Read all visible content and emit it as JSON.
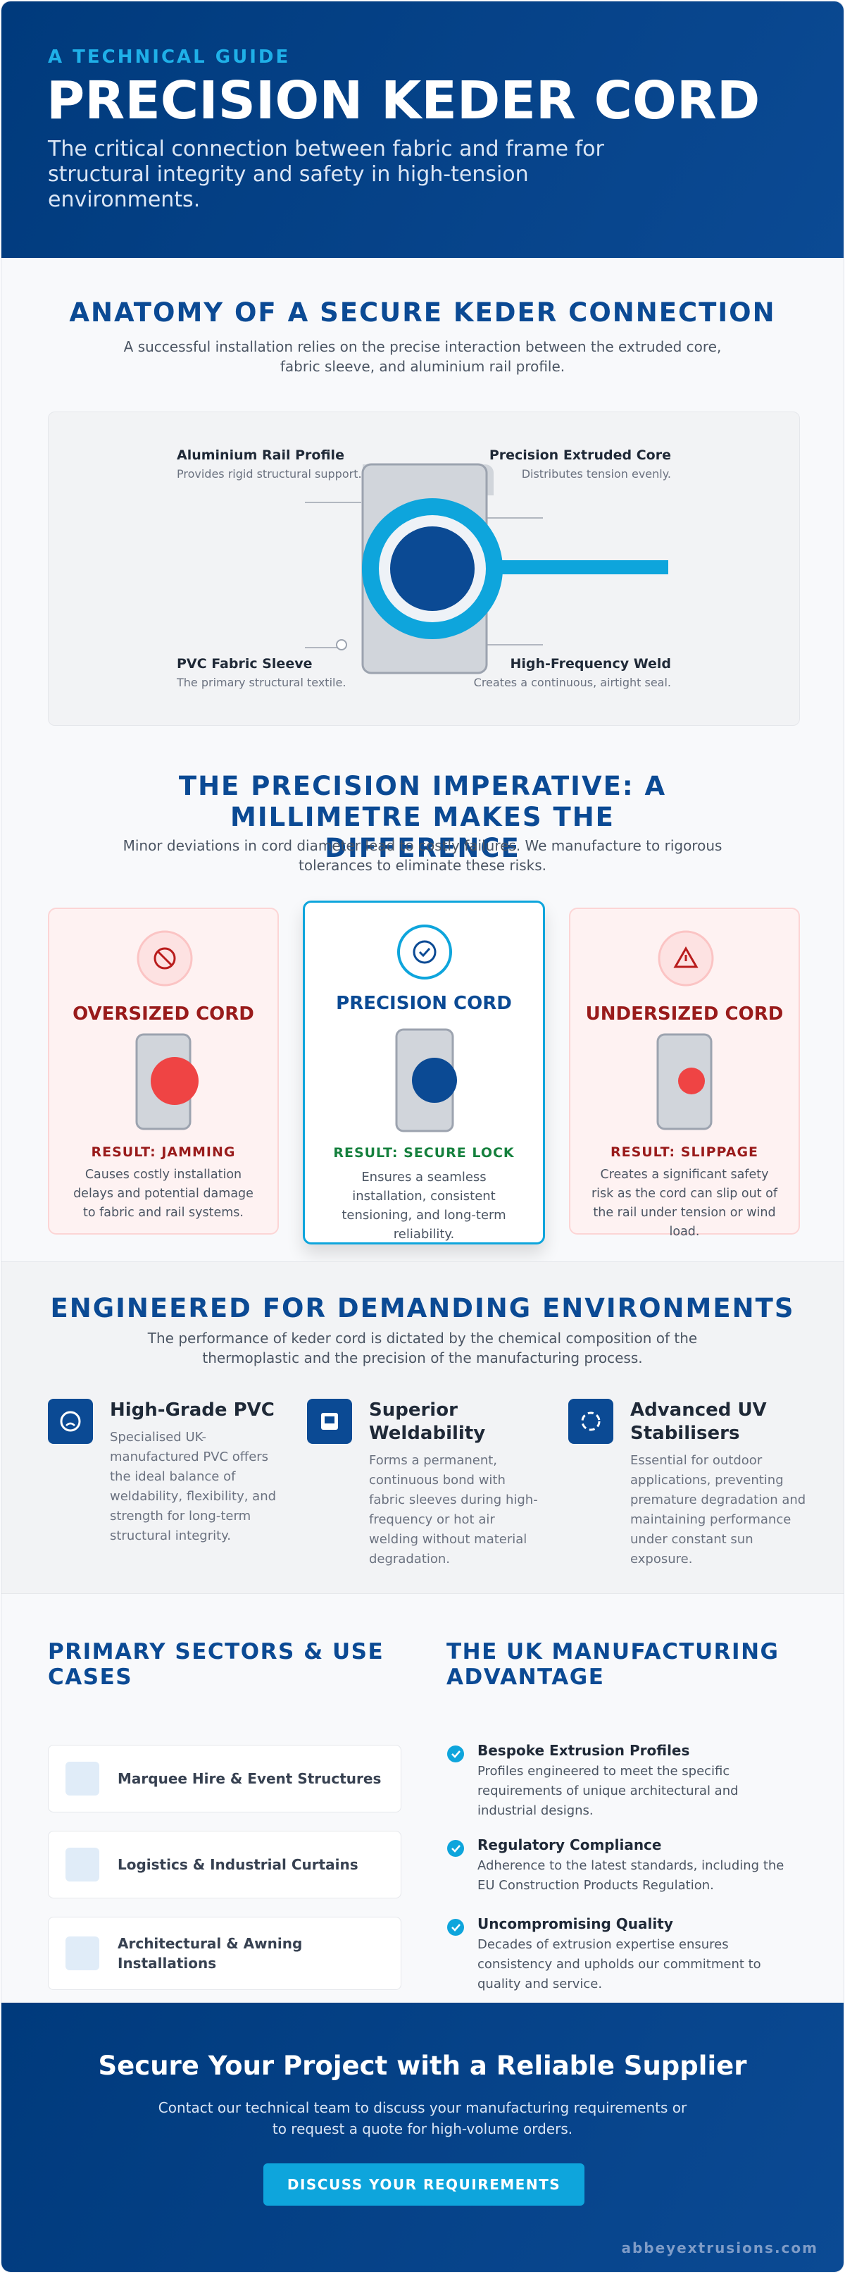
{
  "header": {
    "eyebrow": "A TECHNICAL GUIDE",
    "title": "PRECISION KEDER CORD",
    "subtitle": "The critical connection between fabric and frame for structural integrity and safety in high-tension environments."
  },
  "anatomy": {
    "title": "ANATOMY OF A SECURE KEDER CONNECTION",
    "description": "A successful installation relies on the precise interaction between the extruded core, fabric sleeve, and aluminium rail profile.",
    "labels": [
      {
        "title": "Aluminium Rail Profile",
        "text": "Provides rigid structural support."
      },
      {
        "title": "Precision Extruded Core",
        "text": "Distributes tension evenly."
      },
      {
        "title": "PVC Fabric Sleeve",
        "text": "The primary structural textile."
      },
      {
        "title": "High-Frequency Weld",
        "text": "Creates a continuous, airtight seal."
      }
    ]
  },
  "precision": {
    "title": "THE PRECISION IMPERATIVE: A MILLIMETRE MAKES THE DIFFERENCE",
    "description": "Minor deviations in cord diameter lead to costly failures. We manufacture to rigorous tolerances to eliminate these risks.",
    "cards": [
      {
        "title": "OVERSIZED CORD",
        "result": "RESULT: JAMMING",
        "text": "Causes costly installation delays and potential damage to fabric and rail systems."
      },
      {
        "title": "PRECISION CORD",
        "result": "RESULT: SECURE LOCK",
        "text": "Ensures a seamless installation, consistent tensioning, and long-term reliability."
      },
      {
        "title": "UNDERSIZED CORD",
        "result": "RESULT: SLIPPAGE",
        "text": "Creates a significant safety risk as the cord can slip out of the rail under tension or wind load."
      }
    ]
  },
  "environments": {
    "title": "ENGINEERED FOR DEMANDING ENVIRONMENTS",
    "description": "The performance of keder cord is dictated by the chemical composition of the thermoplastic and the precision of the manufacturing process.",
    "features": [
      {
        "title": "High-Grade PVC",
        "text": "Specialised UK-manufactured PVC offers the ideal balance of weldability, flexibility, and strength for long-term structural integrity."
      },
      {
        "title": "Superior Weldability",
        "text": "Forms a permanent, continuous bond with fabric sleeves during high-frequency or hot air welding without material degradation."
      },
      {
        "title": "Advanced UV Stabilisers",
        "text": "Essential for outdoor applications, preventing premature degradation and maintaining performance under constant sun exposure."
      }
    ]
  },
  "sectors": {
    "title": "PRIMARY SECTORS & USE CASES",
    "items": [
      "Marquee Hire & Event Structures",
      "Logistics & Industrial Curtains",
      "Architectural & Awning Installations"
    ]
  },
  "advantage": {
    "title": "THE UK MANUFACTURING ADVANTAGE",
    "points": [
      {
        "title": "Bespoke Extrusion Profiles",
        "text": "Profiles engineered to meet the specific requirements of unique architectural and industrial designs."
      },
      {
        "title": "Regulatory Compliance",
        "text": "Adherence to the latest standards, including the EU Construction Products Regulation."
      },
      {
        "title": "Uncompromising Quality",
        "text": "Decades of extrusion expertise ensures consistency and upholds our commitment to quality and service."
      }
    ]
  },
  "cta": {
    "title": "Secure Your Project with a Reliable Supplier",
    "text": "Contact our technical team to discuss your manufacturing requirements or to request a quote for high-volume orders.",
    "button": "DISCUSS YOUR REQUIREMENTS",
    "domain": "abbeyextrusions.com"
  }
}
